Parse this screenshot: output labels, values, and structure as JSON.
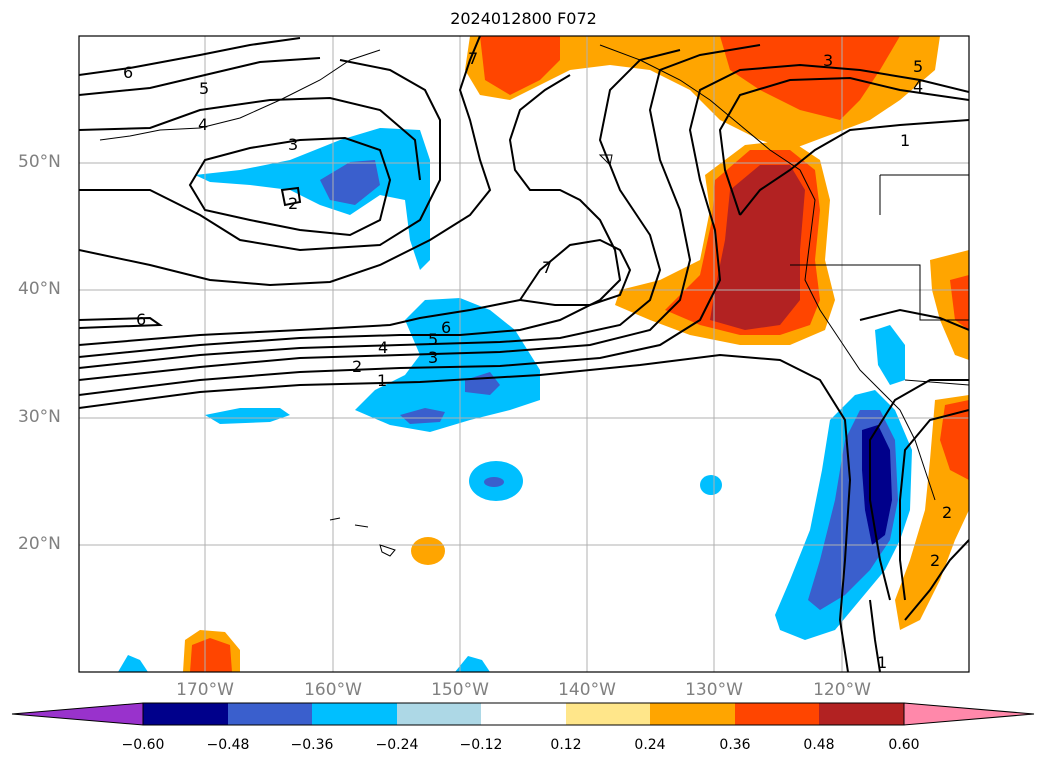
{
  "title": "2024012800 F072",
  "lat_labels": [
    "50°N",
    "40°N",
    "30°N",
    "20°N"
  ],
  "lon_labels": [
    "170°W",
    "160°W",
    "150°W",
    "140°W",
    "130°W",
    "120°W"
  ],
  "colorbar": {
    "ticks": [
      "−0.60",
      "−0.48",
      "−0.36",
      "−0.24",
      "−0.12",
      "0.12",
      "0.24",
      "0.36",
      "0.48",
      "0.60"
    ],
    "colors": [
      "#9932cc",
      "#00008b",
      "#3a5fcd",
      "#00bfff",
      "#add8e6",
      "#ffffff",
      "#ffe68a",
      "#ffa500",
      "#ff4500",
      "#b22222",
      "#ff88aa"
    ]
  },
  "contour_labels": [
    "7",
    "3",
    "5",
    "4",
    "1",
    "6",
    "5",
    "4",
    "3",
    "2",
    "7",
    "6",
    "6",
    "5",
    "4",
    "3",
    "2",
    "1",
    "2",
    "2",
    "1"
  ],
  "map_extent": {
    "lon_min": -180,
    "lon_max": -110,
    "lat_min": 10,
    "lat_max": 60
  }
}
